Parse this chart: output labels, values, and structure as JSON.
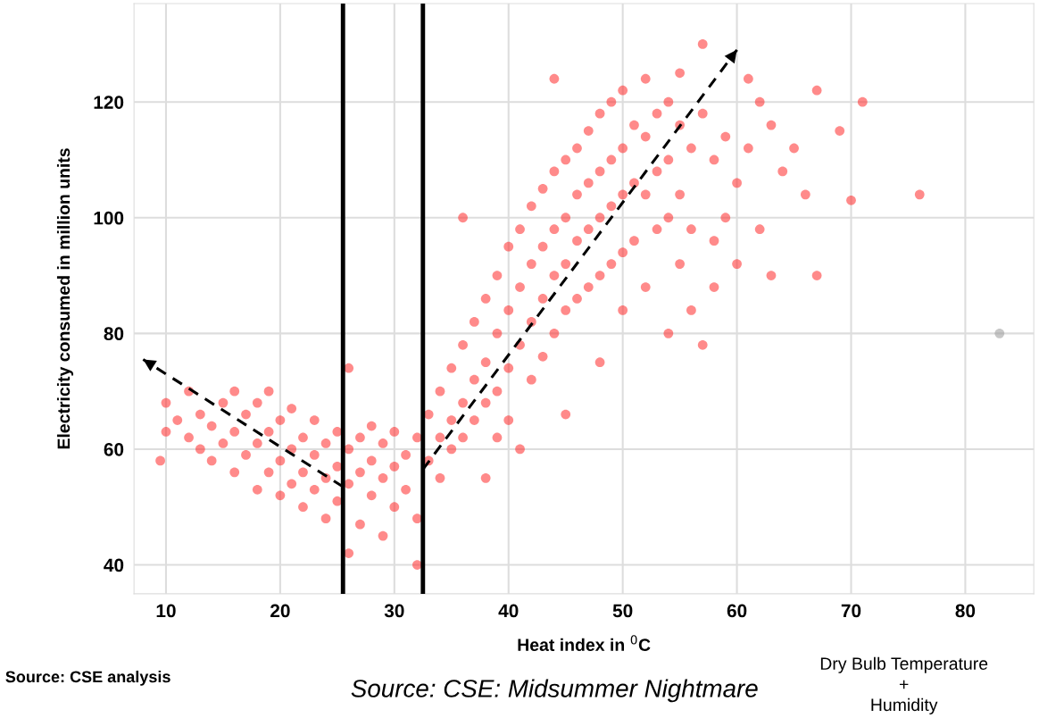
{
  "chart_data": {
    "type": "scatter",
    "xlabel": "Heat index in $^{0}$C",
    "ylabel": "Electricity consumed in million units",
    "xlim": [
      7.2,
      86
    ],
    "ylim": [
      35,
      137
    ],
    "xticks": [
      10,
      20,
      30,
      40,
      50,
      60,
      70,
      80
    ],
    "yticks": [
      40,
      60,
      80,
      100,
      120
    ],
    "grid": true,
    "marker": "circle",
    "series": [
      {
        "color": "#ff2a2a",
        "x": [
          9.5,
          10,
          10,
          11,
          12,
          12,
          13,
          13,
          14,
          14,
          15,
          15,
          16,
          16,
          16,
          17,
          17,
          18,
          18,
          18,
          19,
          19,
          19,
          20,
          20,
          20,
          21,
          21,
          21,
          22,
          22,
          22,
          23,
          23,
          23,
          24,
          24,
          24,
          25,
          25,
          25,
          26,
          26,
          26,
          26,
          27,
          27,
          27,
          28,
          28,
          28,
          29,
          29,
          29,
          30,
          30,
          30,
          31,
          31,
          32,
          32,
          32,
          33,
          33,
          34,
          34,
          34,
          35,
          35,
          35,
          36,
          36,
          36,
          36,
          37,
          37,
          37,
          38,
          38,
          38,
          38,
          39,
          39,
          39,
          39,
          40,
          40,
          40,
          40,
          41,
          41,
          41,
          41,
          42,
          42,
          42,
          42,
          43,
          43,
          43,
          43,
          44,
          44,
          44,
          44,
          44,
          45,
          45,
          45,
          45,
          45,
          46,
          46,
          46,
          46,
          47,
          47,
          47,
          47,
          48,
          48,
          48,
          48,
          48,
          49,
          49,
          49,
          49,
          50,
          50,
          50,
          50,
          50,
          51,
          51,
          51,
          52,
          52,
          52,
          52,
          53,
          53,
          53,
          54,
          54,
          54,
          54,
          55,
          55,
          55,
          55,
          56,
          56,
          56,
          57,
          57,
          57,
          58,
          58,
          58,
          59,
          59,
          60,
          60,
          61,
          61,
          62,
          62,
          63,
          63,
          64,
          65,
          66,
          67,
          67,
          69,
          70,
          71,
          76
        ],
        "values": [
          58,
          63,
          68,
          65,
          62,
          70,
          60,
          66,
          58,
          64,
          68,
          61,
          56,
          63,
          70,
          59,
          66,
          53,
          61,
          68,
          56,
          63,
          70,
          52,
          58,
          65,
          54,
          60,
          67,
          50,
          56,
          62,
          53,
          59,
          65,
          48,
          55,
          61,
          51,
          57,
          63,
          42,
          54,
          60,
          74,
          47,
          56,
          62,
          52,
          58,
          64,
          45,
          55,
          61,
          50,
          57,
          63,
          53,
          59,
          48,
          62,
          40,
          66,
          58,
          70,
          62,
          55,
          74,
          65,
          60,
          78,
          68,
          62,
          100,
          82,
          72,
          65,
          86,
          75,
          68,
          55,
          90,
          80,
          70,
          62,
          95,
          84,
          74,
          65,
          98,
          88,
          78,
          60,
          102,
          92,
          82,
          72,
          105,
          95,
          86,
          76,
          108,
          98,
          90,
          80,
          124,
          110,
          100,
          92,
          84,
          66,
          112,
          104,
          96,
          86,
          115,
          106,
          98,
          88,
          118,
          108,
          100,
          90,
          75,
          120,
          110,
          102,
          92,
          122,
          112,
          104,
          94,
          84,
          116,
          106,
          96,
          124,
          114,
          104,
          88,
          118,
          108,
          98,
          120,
          110,
          100,
          80,
          125,
          116,
          104,
          92,
          112,
          98,
          84,
          130,
          118,
          78,
          110,
          96,
          88,
          114,
          100,
          106,
          92,
          124,
          112,
          120,
          98,
          116,
          90,
          108,
          112,
          104,
          122,
          90,
          115,
          103,
          120,
          104
        ]
      },
      {
        "color": "#999999",
        "x": [
          83
        ],
        "values": [
          80
        ]
      },
      {
        "type": "line",
        "line_style": "dashed",
        "marker": "none",
        "color": "#000000",
        "x": [
          25.5,
          8
        ],
        "values": [
          53.5,
          75.5
        ]
      },
      {
        "type": "line",
        "line_style": "dashed",
        "marker": "none",
        "color": "#000000",
        "x": [
          32.5,
          60
        ],
        "values": [
          56.5,
          129
        ]
      }
    ],
    "ref_lines": [
      {
        "axis": "x",
        "value": 25.5,
        "color": "#000000"
      },
      {
        "axis": "x",
        "value": 32.5,
        "color": "#000000"
      }
    ],
    "annotations": [
      "Source: CSE analysis",
      "Source: CSE: Midsummer Nightmare",
      "Dry Bulb Temperature\n+\nHumidity"
    ]
  }
}
